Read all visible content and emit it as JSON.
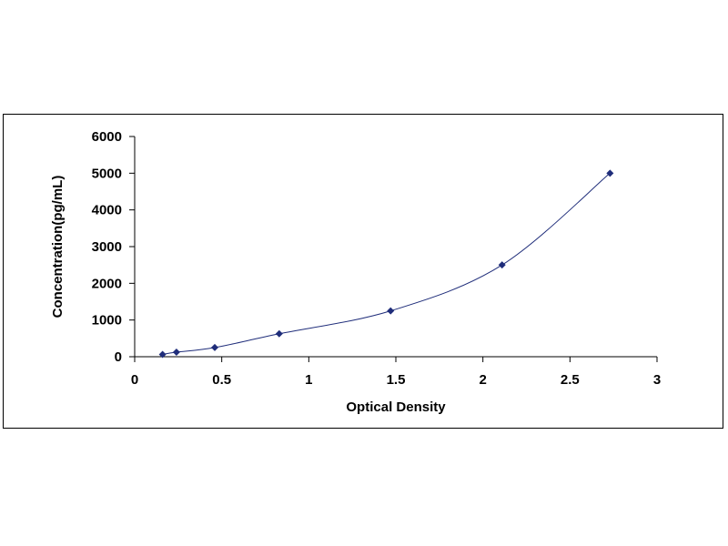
{
  "chart_data": {
    "type": "scatter",
    "title": "",
    "xlabel": "Optical Density",
    "ylabel": "Concentration(pg/mL)",
    "xlim": [
      0,
      3
    ],
    "ylim": [
      0,
      6000
    ],
    "x_ticks": [
      0,
      0.5,
      1,
      1.5,
      2,
      2.5,
      3
    ],
    "x_tick_labels": [
      "0",
      "0.5",
      "1",
      "1.5",
      "2",
      "2.5",
      "3"
    ],
    "y_ticks": [
      0,
      1000,
      2000,
      3000,
      4000,
      5000,
      6000
    ],
    "y_tick_labels": [
      "0",
      "1000",
      "2000",
      "3000",
      "4000",
      "5000",
      "6000"
    ],
    "grid": false,
    "legend": "none",
    "series": [
      {
        "x": [
          0.16,
          0.24,
          0.46,
          0.83,
          1.47,
          2.11,
          2.73
        ],
        "y": [
          62,
          125,
          250,
          625,
          1250,
          2500,
          5000
        ],
        "marker": "diamond",
        "color": "#1f2d7a",
        "trendline": "smooth"
      }
    ]
  }
}
